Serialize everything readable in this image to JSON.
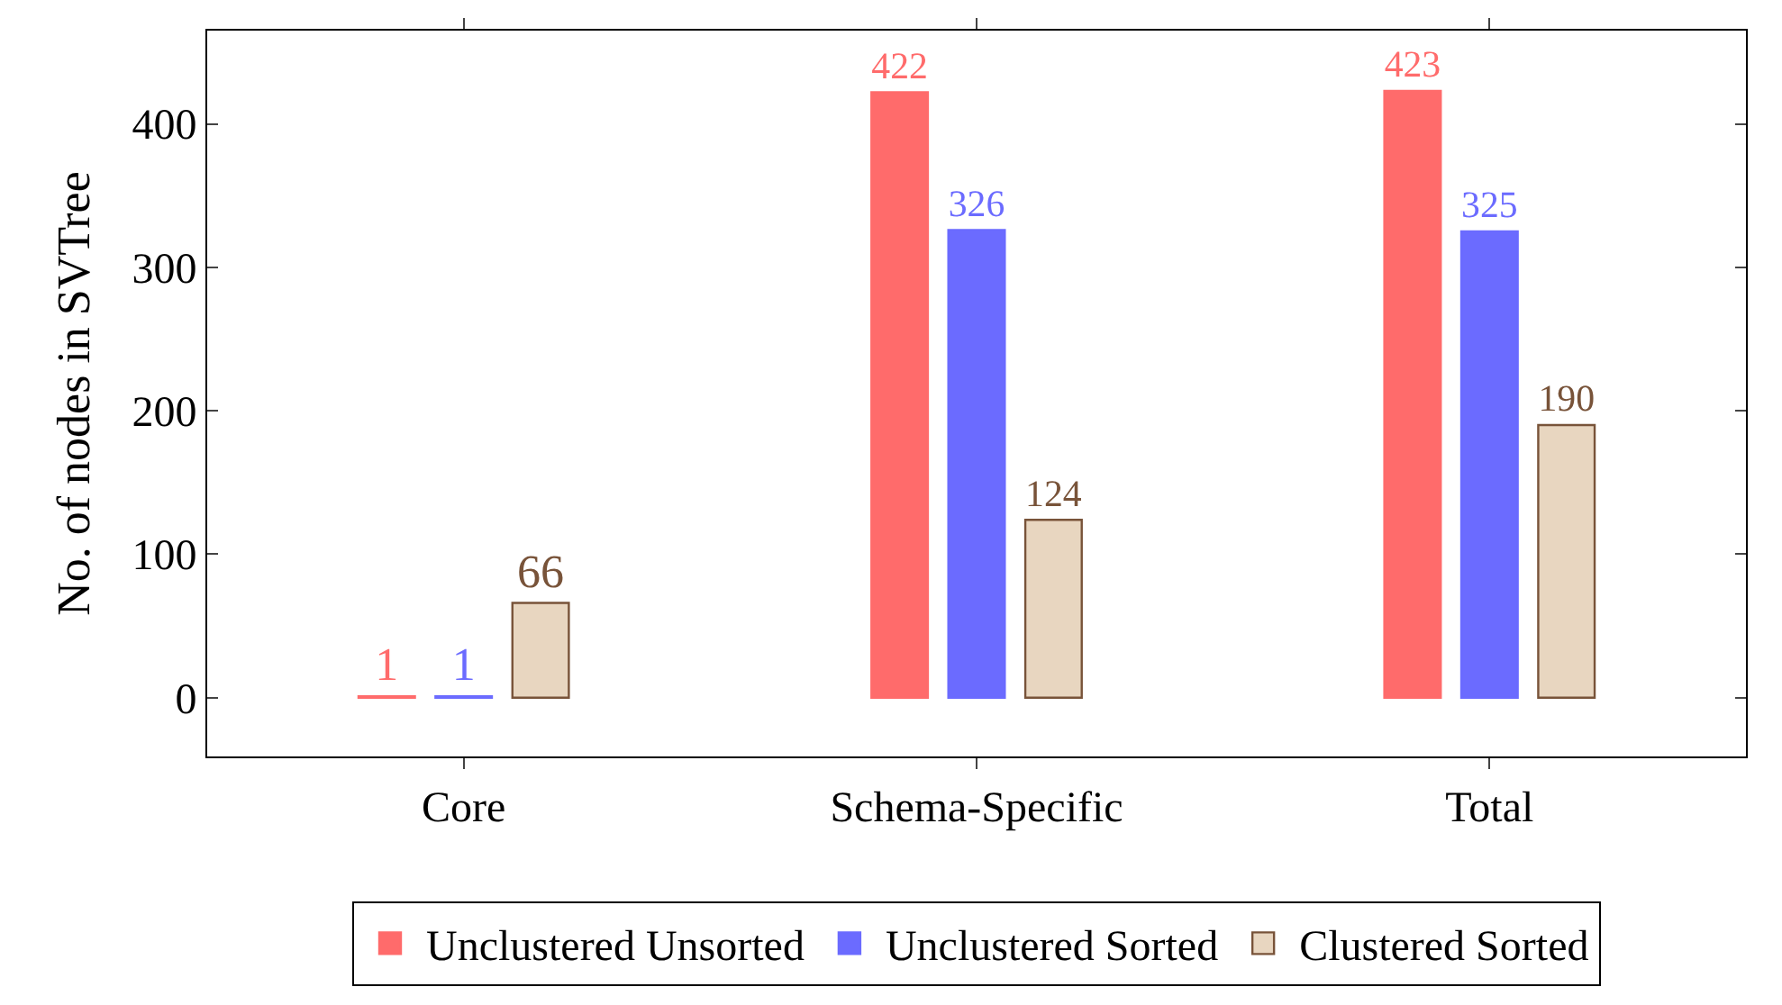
{
  "chart_data": {
    "type": "bar",
    "ylabel": "No. of nodes in SVTree",
    "categories": [
      "Core",
      "Schema-Specific",
      "Total"
    ],
    "series": [
      {
        "name": "Unclustered Unsorted",
        "color": "#ff6b6b",
        "values": [
          1,
          422,
          423
        ]
      },
      {
        "name": "Unclustered Sorted",
        "color": "#6b6bff",
        "values": [
          1,
          326,
          325
        ]
      },
      {
        "name": "Clustered Sorted",
        "color": "#e8d6c0",
        "values": [
          66,
          124,
          190
        ]
      }
    ],
    "ylim": [
      -41,
      465
    ],
    "yticks": [
      0,
      100,
      200,
      300,
      400
    ],
    "data_labels": true,
    "legend": "bottom"
  }
}
